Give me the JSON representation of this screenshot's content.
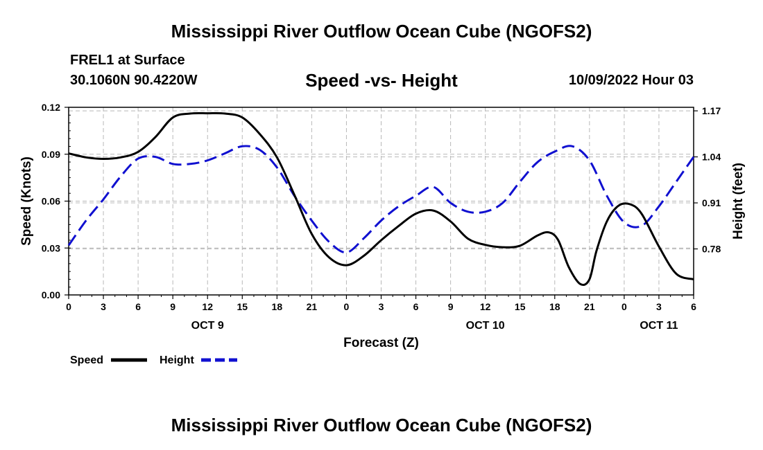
{
  "page": {
    "title_top": "Mississippi River Outflow Ocean Cube (NGOFS2)",
    "title_bottom": "Mississippi River Outflow Ocean Cube (NGOFS2)"
  },
  "station": {
    "name": "FREL1 at Surface",
    "coords": "30.1060N  90.4220W"
  },
  "chart_data": {
    "type": "line",
    "title": "Speed -vs- Height",
    "datetime": "10/09/2022 Hour 03",
    "xlabel": "Forecast (Z)",
    "ylabel": "Speed (Knots)",
    "y2label": "Height (feet)",
    "xlim": [
      0,
      54
    ],
    "ylim": [
      0,
      0.12
    ],
    "y2lim": [
      0.65,
      1.18
    ],
    "grid": true,
    "x_ticks": [
      0,
      3,
      6,
      9,
      12,
      15,
      18,
      21,
      24,
      27,
      30,
      33,
      36,
      39,
      42,
      45,
      48,
      51,
      54
    ],
    "x_tick_labels": [
      "0",
      "3",
      "6",
      "9",
      "12",
      "15",
      "18",
      "21",
      "0",
      "3",
      "6",
      "9",
      "12",
      "15",
      "18",
      "21",
      "0",
      "3",
      "6"
    ],
    "y_ticks": [
      0,
      0.03,
      0.06,
      0.09,
      0.12
    ],
    "y_tick_labels": [
      "0.00",
      "0.03",
      "0.06",
      "0.09",
      "0.12"
    ],
    "y2_ticks": [
      0.78,
      0.91,
      1.04,
      1.17
    ],
    "y2_tick_labels": [
      "0.78",
      "0.91",
      "1.04",
      "1.17"
    ],
    "day_labels": [
      {
        "x": 12,
        "label": "OCT 9"
      },
      {
        "x": 36,
        "label": "OCT 10"
      },
      {
        "x": 51,
        "label": "OCT 11"
      }
    ],
    "legend": [
      {
        "name": "Speed",
        "color": "#000000",
        "dash": "solid"
      },
      {
        "name": "Height",
        "color": "#1010d0",
        "dash": "dashed"
      }
    ],
    "series": [
      {
        "name": "Speed",
        "axis": "left",
        "color": "#000000",
        "x": [
          0,
          1.5,
          3,
          4.5,
          6,
          7.5,
          9,
          10.5,
          12,
          13.5,
          15,
          16.5,
          18,
          19.5,
          21,
          22.5,
          24,
          25.5,
          27,
          28.5,
          30,
          31.5,
          33,
          34.5,
          36,
          37.5,
          39,
          40.5,
          41.5,
          42.3,
          43.2,
          44.2,
          45,
          45.6,
          46.5,
          47.5,
          48.5,
          49.5,
          51,
          52.5,
          54
        ],
        "values": [
          0.0905,
          0.088,
          0.087,
          0.088,
          0.0915,
          0.101,
          0.1135,
          0.116,
          0.1162,
          0.116,
          0.1135,
          0.103,
          0.088,
          0.064,
          0.039,
          0.024,
          0.019,
          0.025,
          0.035,
          0.044,
          0.052,
          0.054,
          0.047,
          0.036,
          0.032,
          0.0305,
          0.0315,
          0.038,
          0.04,
          0.035,
          0.018,
          0.007,
          0.01,
          0.028,
          0.047,
          0.057,
          0.058,
          0.052,
          0.031,
          0.0135,
          0.01
        ]
      },
      {
        "name": "Height",
        "axis": "right",
        "color": "#1010d0",
        "x": [
          0,
          1.5,
          3,
          4.5,
          6,
          7.5,
          9,
          10.5,
          12,
          13.5,
          15,
          16.5,
          18,
          19.5,
          21,
          22.5,
          24,
          25.5,
          27,
          28.5,
          30,
          31.5,
          33,
          34.5,
          36,
          37.5,
          39,
          40.5,
          42,
          43.5,
          45,
          46.5,
          48,
          49.5,
          51,
          52.5,
          54
        ],
        "values": [
          0.79,
          0.86,
          0.92,
          0.985,
          1.035,
          1.04,
          1.02,
          1.02,
          1.03,
          1.05,
          1.07,
          1.06,
          1.01,
          0.93,
          0.86,
          0.8,
          0.77,
          0.81,
          0.86,
          0.9,
          0.93,
          0.955,
          0.91,
          0.885,
          0.885,
          0.91,
          0.97,
          1.025,
          1.055,
          1.07,
          1.03,
          0.93,
          0.855,
          0.845,
          0.9,
          0.97,
          1.04
        ]
      }
    ]
  }
}
